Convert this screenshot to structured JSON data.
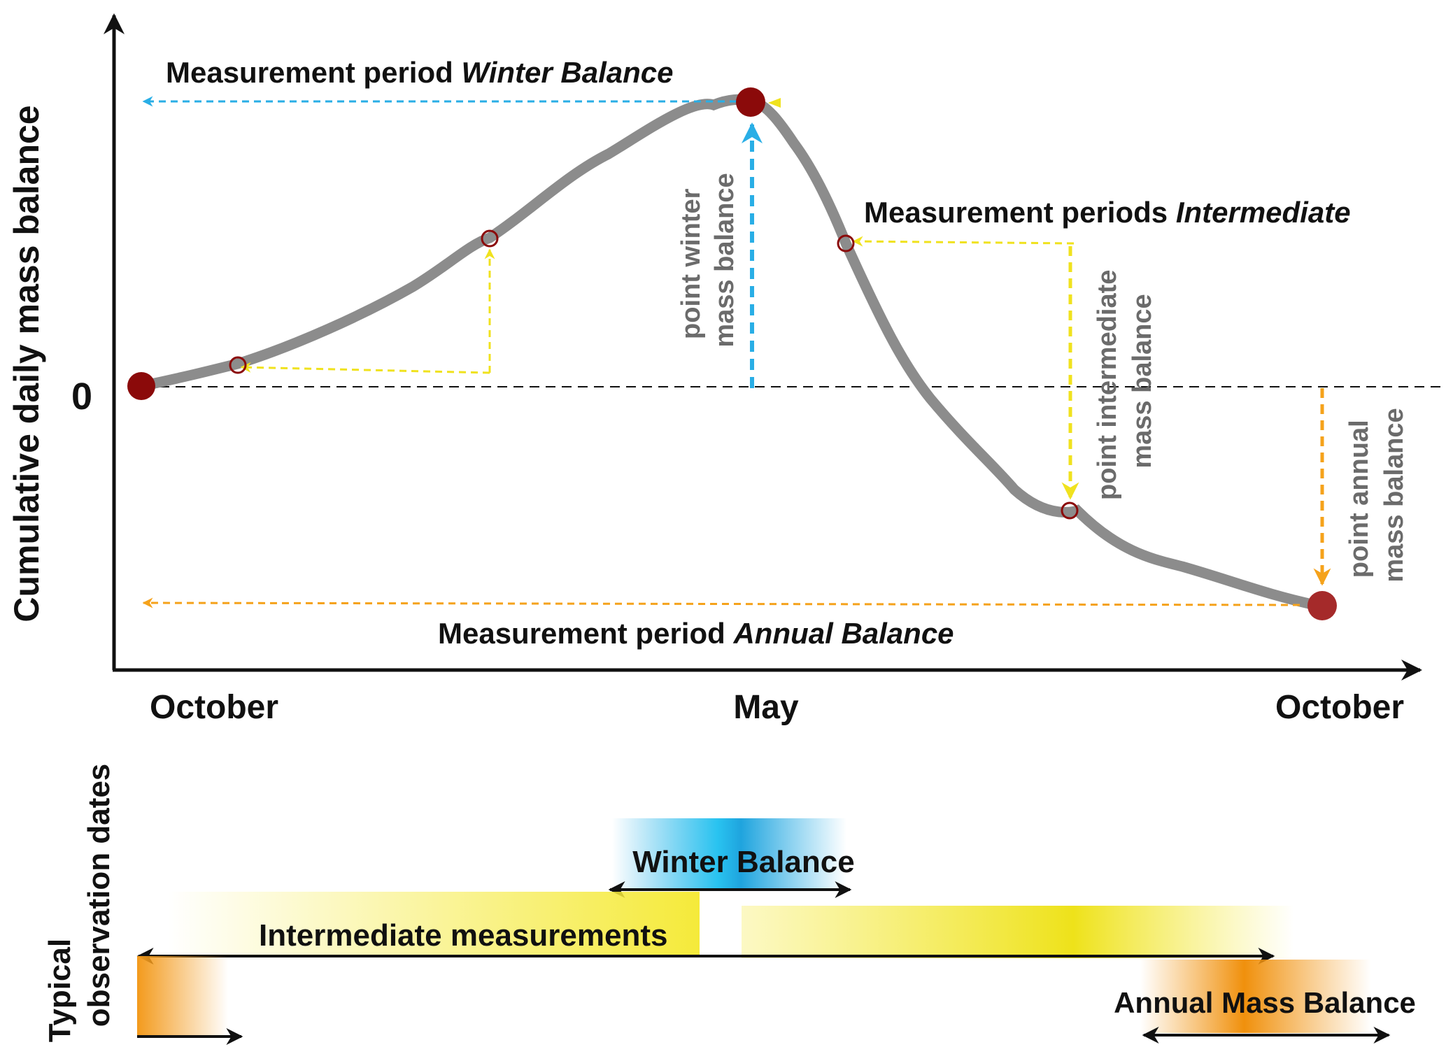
{
  "axis": {
    "ylabel": "Cumulative daily mass balance",
    "zero_label": "0",
    "x_ticks": [
      "October",
      "May",
      "October"
    ]
  },
  "annotations": {
    "winter_period_prefix": "Measurement period ",
    "winter_period_emph": "Winter Balance",
    "intermediate_period_prefix": "Measurement periods ",
    "intermediate_period_emph": "Intermediate",
    "annual_period_prefix": "Measurement period ",
    "annual_period_emph": "Annual Balance",
    "point_winter_1": "point winter",
    "point_winter_2": "mass balance",
    "point_intermediate_1": "point intermediate",
    "point_intermediate_2": "mass balance",
    "point_annual_1": "point annual",
    "point_annual_2": "mass balance"
  },
  "timeline": {
    "ylabel_1": "Typical",
    "ylabel_2": "observation dates",
    "winter_label": "Winter Balance",
    "intermediate_label": "Intermediate measurements",
    "annual_label": "Annual Mass Balance"
  },
  "colors": {
    "curve": "#8c8c8c",
    "point": "#8b0a0a",
    "winter": "#29aee6",
    "intermediate": "#f0e21e",
    "annual": "#f5a21b"
  }
}
